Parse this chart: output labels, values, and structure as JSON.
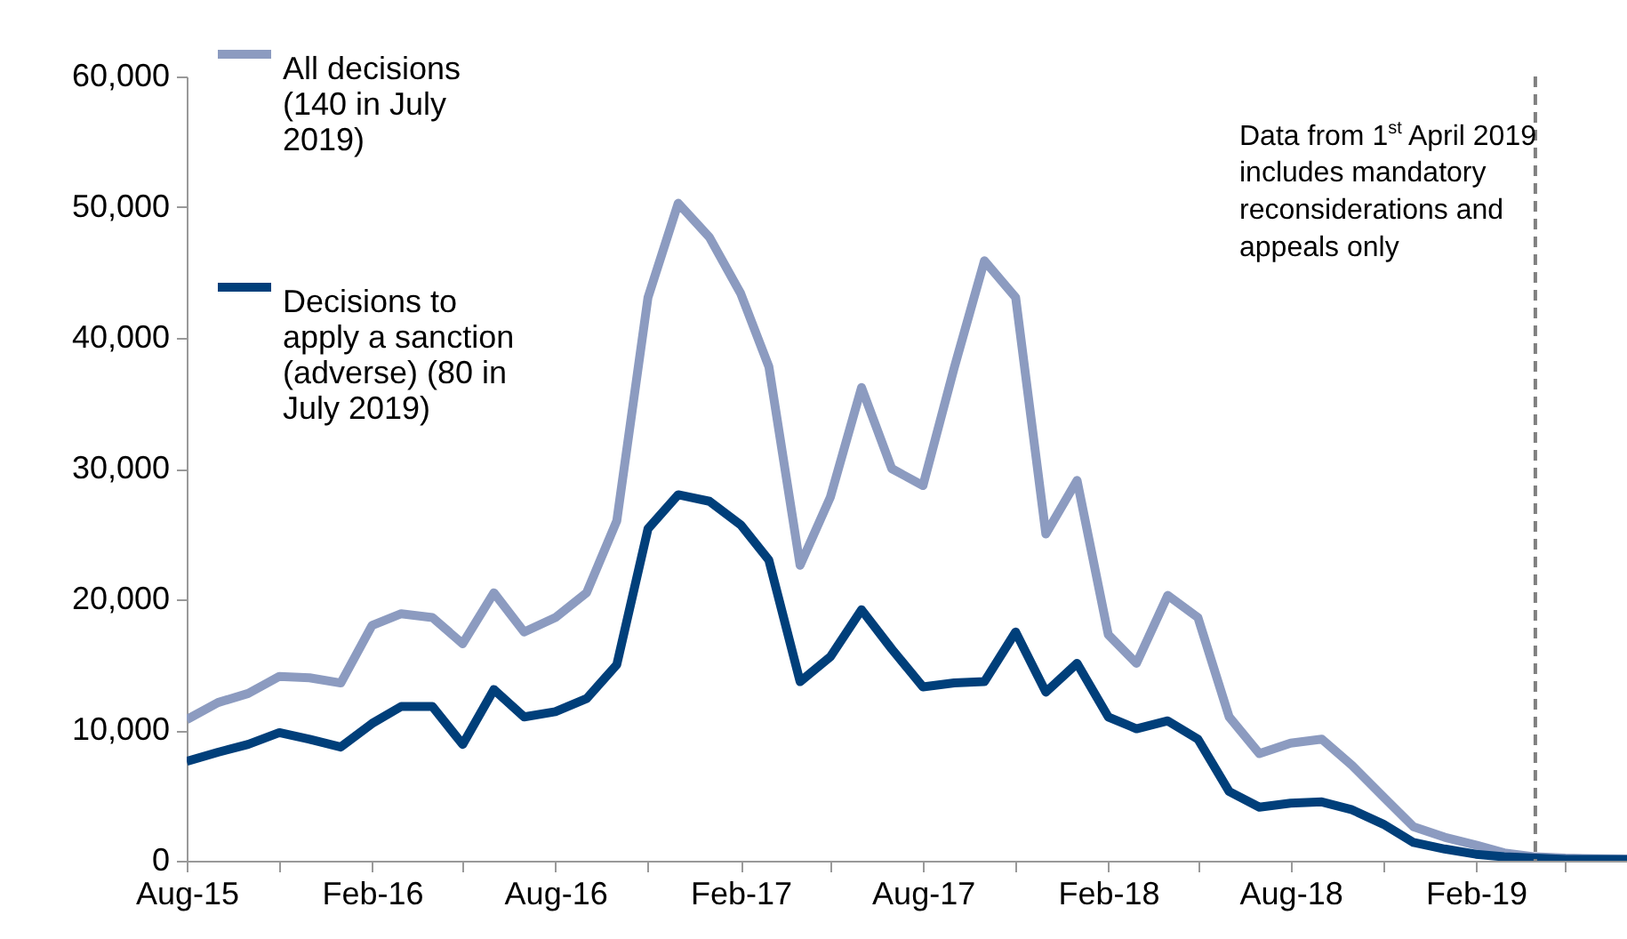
{
  "chart_data": {
    "type": "line",
    "x": [
      "2015-08",
      "2015-09",
      "2015-10",
      "2015-11",
      "2015-12",
      "2016-01",
      "2016-02",
      "2016-03",
      "2016-04",
      "2016-05",
      "2016-06",
      "2016-07",
      "2016-08",
      "2016-09",
      "2016-10",
      "2016-11",
      "2016-12",
      "2017-01",
      "2017-02",
      "2017-03",
      "2017-04",
      "2017-05",
      "2017-06",
      "2017-07",
      "2017-08",
      "2017-09",
      "2017-10",
      "2017-11",
      "2017-12",
      "2018-01",
      "2018-02",
      "2018-03",
      "2018-04",
      "2018-05",
      "2018-06",
      "2018-07",
      "2018-08",
      "2018-09",
      "2018-10",
      "2018-11",
      "2018-12",
      "2019-01",
      "2019-02",
      "2019-03",
      "2019-04",
      "2019-05",
      "2019-06",
      "2019-07"
    ],
    "series": [
      {
        "name": "All decisions (140 in July 2019)",
        "color": "#8c9bc0",
        "values": [
          10800,
          12100,
          12800,
          14100,
          14000,
          13600,
          18000,
          18900,
          18600,
          16600,
          20500,
          17500,
          18600,
          20500,
          26000,
          43100,
          50300,
          47700,
          43400,
          37800,
          22600,
          27800,
          36200,
          30000,
          28700,
          37700,
          45900,
          43100,
          25000,
          29100,
          17300,
          15100,
          20300,
          18600,
          11000,
          8200,
          9000,
          9300,
          7300,
          4900,
          2600,
          1800,
          1200,
          600,
          300,
          200,
          150,
          140
        ]
      },
      {
        "name": "Decisions to apply a sanction (adverse) (80 in July 2019)",
        "color": "#003f7a",
        "values": [
          7600,
          8300,
          8900,
          9800,
          9300,
          8700,
          10500,
          11800,
          11800,
          8900,
          13100,
          11000,
          11400,
          12400,
          15000,
          25400,
          28000,
          27500,
          25700,
          23000,
          13700,
          15600,
          19200,
          16200,
          13300,
          13600,
          13700,
          17500,
          12900,
          15100,
          11000,
          10100,
          10700,
          9300,
          5300,
          4100,
          4400,
          4500,
          3900,
          2800,
          1400,
          900,
          500,
          300,
          200,
          100,
          100,
          80
        ]
      }
    ],
    "xlim": [
      "2015-08",
      "2019-07"
    ],
    "xticks": [
      {
        "value": "2015-08",
        "label": "Aug-15"
      },
      {
        "value": "2015-11",
        "label": null
      },
      {
        "value": "2016-02",
        "label": "Feb-16"
      },
      {
        "value": "2016-05",
        "label": null
      },
      {
        "value": "2016-08",
        "label": "Aug-16"
      },
      {
        "value": "2016-11",
        "label": null
      },
      {
        "value": "2017-02",
        "label": "Feb-17"
      },
      {
        "value": "2017-05",
        "label": null
      },
      {
        "value": "2017-08",
        "label": "Aug-17"
      },
      {
        "value": "2017-11",
        "label": null
      },
      {
        "value": "2018-02",
        "label": "Feb-18"
      },
      {
        "value": "2018-05",
        "label": null
      },
      {
        "value": "2018-08",
        "label": "Aug-18"
      },
      {
        "value": "2018-11",
        "label": null
      },
      {
        "value": "2019-02",
        "label": "Feb-19"
      },
      {
        "value": "2019-05",
        "label": null
      }
    ],
    "ylim": [
      0,
      60000
    ],
    "yticks": [
      {
        "value": 0,
        "label": "0"
      },
      {
        "value": 10000,
        "label": "10,000"
      },
      {
        "value": 20000,
        "label": "20,000"
      },
      {
        "value": 30000,
        "label": "30,000"
      },
      {
        "value": 40000,
        "label": "40,000"
      },
      {
        "value": 50000,
        "label": "50,000"
      },
      {
        "value": 60000,
        "label": "60,000"
      }
    ],
    "ref_lines": [
      {
        "axis": "x",
        "value": "2019-04",
        "color": "#808080",
        "line_style": "dashed"
      }
    ],
    "annotations": [
      "Data from 1$^{st}$ April 2019 includes mandatory reconsiderations and appeals only"
    ],
    "legend": "top left",
    "grid": false,
    "line_style": "solid",
    "marker": "none"
  }
}
